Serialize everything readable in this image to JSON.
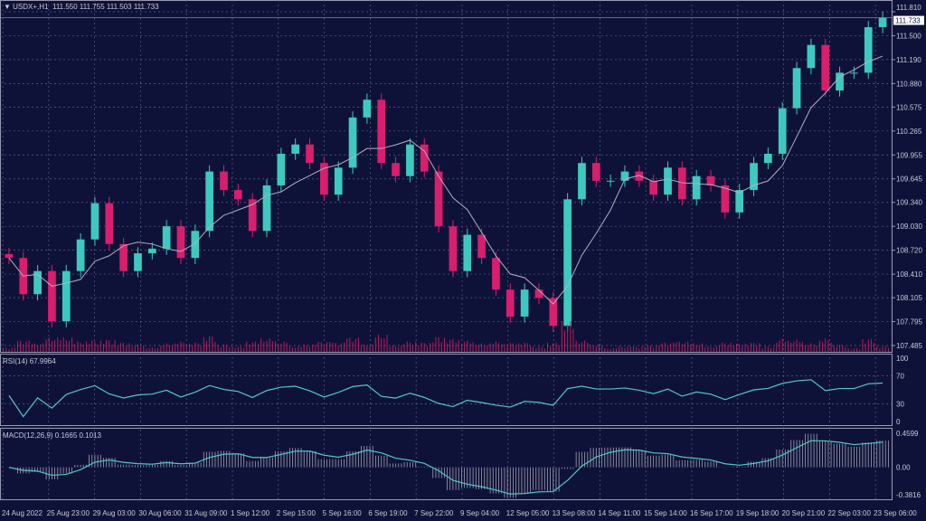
{
  "header": {
    "symbol": "USDX+,H1",
    "ohlc": "111.550 111.755 111.503 111.733"
  },
  "colors": {
    "background": "#0f1238",
    "grid": "#5a5e8a",
    "bull": "#3ec9c0",
    "bear": "#d81e6c",
    "ma": "#b0b0c0",
    "rsi": "#4fc8c8",
    "macd_signal": "#4fc8c8",
    "macd_hist": "#a0a0b0"
  },
  "chart_data": [
    {
      "type": "candlestick",
      "title": "USDX+,H1",
      "current_price": "111.733",
      "yticks": [
        "111.810",
        "111.500",
        "111.190",
        "110.880",
        "110.575",
        "110.265",
        "109.955",
        "109.645",
        "109.340",
        "109.030",
        "108.720",
        "108.410",
        "108.105",
        "107.795",
        "107.485"
      ],
      "ylim": [
        107.485,
        111.81
      ],
      "xticks": [
        "24 Aug 2022",
        "25 Aug 23:00",
        "29 Aug 03:00",
        "30 Aug 06:00",
        "31 Aug 09:00",
        "1 Sep 12:00",
        "2 Sep 15:00",
        "5 Sep 16:00",
        "6 Sep 19:00",
        "7 Sep 22:00",
        "9 Sep 04:00",
        "12 Sep 05:00",
        "13 Sep 08:00",
        "14 Sep 11:00",
        "15 Sep 14:00",
        "16 Sep 17:00",
        "19 Sep 18:00",
        "20 Sep 21:00",
        "22 Sep 03:00",
        "23 Sep 06:00"
      ],
      "close": [
        108.62,
        108.15,
        108.45,
        107.8,
        108.45,
        108.86,
        109.33,
        108.8,
        108.45,
        108.68,
        108.74,
        109.03,
        108.62,
        108.97,
        109.74,
        109.5,
        109.38,
        108.97,
        109.56,
        109.97,
        110.09,
        109.85,
        109.44,
        109.79,
        110.44,
        110.67,
        109.85,
        109.68,
        110.09,
        109.74,
        109.03,
        108.45,
        108.92,
        108.62,
        108.21,
        107.86,
        108.21,
        108.1,
        107.74,
        109.38,
        109.85,
        109.62,
        109.62,
        109.74,
        109.62,
        109.44,
        109.79,
        109.38,
        109.68,
        109.56,
        109.21,
        109.5,
        109.85,
        109.97,
        110.56,
        111.08,
        111.38,
        110.79,
        111.02,
        111.02,
        111.61,
        111.733
      ],
      "grid": true,
      "overlay": "moving average"
    },
    {
      "type": "line",
      "title": "RSI(14) 67.9964",
      "yticks": [
        "100",
        "70",
        "30",
        "0"
      ],
      "ylim": [
        0,
        100
      ]
    },
    {
      "type": "bar",
      "title": "MACD(12,26,9) 0.1665 0.1013",
      "yticks": [
        "0.4599",
        "0.00",
        "-0.3816"
      ],
      "ylim": [
        -0.3816,
        0.4599
      ]
    }
  ]
}
